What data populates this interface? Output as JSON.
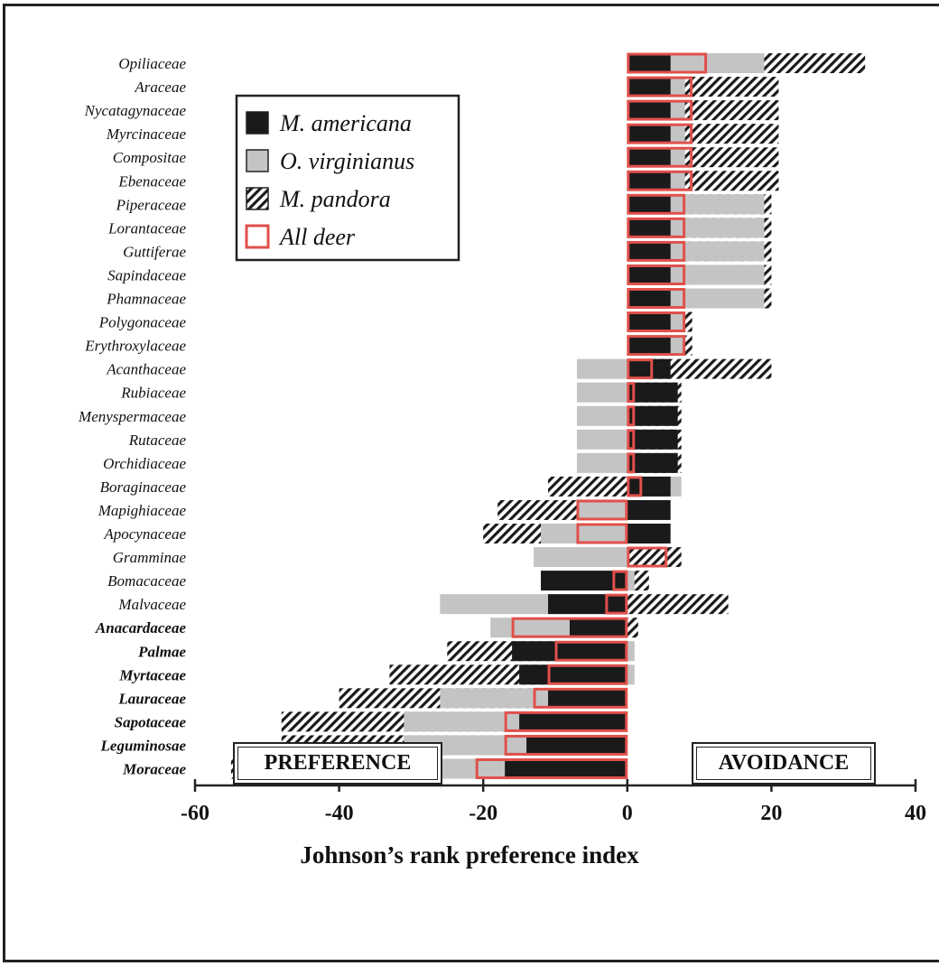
{
  "chart_data": {
    "type": "bar",
    "orientation": "horizontal",
    "xlabel": "Johnson’s rank preference index",
    "xlim": [
      -60,
      40
    ],
    "xticks": [
      -60,
      -40,
      -20,
      0,
      20,
      40
    ],
    "region_labels": {
      "left": "PREFERENCE",
      "right": "AVOIDANCE"
    },
    "legend_position": "top-left",
    "colors": {
      "m_americana": "#1a1a1a",
      "o_virginianus": "#c4c4c4",
      "m_pandora": "#1a1a1a",
      "all_deer": "#e0504a"
    },
    "categories": [
      "Opiliaceae",
      "Araceae",
      "Nycatagynaceae",
      "Myrcinaceae",
      "Compositae",
      "Ebenaceae",
      "Piperaceae",
      "Lorantaceae",
      "Guttiferae",
      "Sapindaceae",
      "Phamnaceae",
      "Polygonaceae",
      "Erythroxylaceae",
      "Acanthaceae",
      "Rubiaceae",
      "Menyspermaceae",
      "Rutaceae",
      "Orchidiaceae",
      "Boraginaceae",
      "Mapighiaceae",
      "Apocynaceae",
      "Gramminae",
      "Bomacaceae",
      "Malvaceae",
      "Anacardaceae",
      "Palmae",
      "Myrtaceae",
      "Lauraceae",
      "Sapotaceae",
      "Leguminosae",
      "Moraceae"
    ],
    "bold_categories": [
      "Anacardaceae",
      "Palmae",
      "Myrtaceae",
      "Lauraceae",
      "Sapotaceae",
      "Leguminosae",
      "Moraceae"
    ],
    "series": [
      {
        "name": "M. americana",
        "values": [
          6,
          6,
          6,
          6,
          6,
          6,
          6,
          6,
          6,
          6,
          6,
          6,
          6,
          6,
          7,
          7,
          7,
          7,
          6,
          6,
          6,
          0,
          -12,
          -11,
          -8,
          -16,
          -15,
          -11,
          -15,
          -14,
          -17
        ]
      },
      {
        "name": "O. virginianus",
        "values": [
          19,
          8,
          8,
          8,
          8,
          8,
          19,
          19,
          19,
          19,
          19,
          8,
          8,
          -7,
          -7,
          -7,
          -7,
          -7,
          7.5,
          -7,
          -12,
          -13,
          1,
          -26,
          -19,
          1,
          1,
          -26,
          -31,
          -31,
          -35
        ]
      },
      {
        "name": "M. pandora",
        "values": [
          33,
          21,
          21,
          21,
          21,
          21,
          20,
          20,
          20,
          20,
          20,
          9,
          9,
          20,
          7.5,
          7.5,
          7.5,
          7.5,
          -11,
          -18,
          -20,
          7.5,
          3,
          14,
          1.5,
          -25,
          -33,
          -40,
          -48,
          -48,
          -55
        ]
      },
      {
        "name": "All deer",
        "values": [
          11,
          9,
          9,
          9,
          9,
          9,
          8,
          8,
          8,
          8,
          8,
          8,
          8,
          3.5,
          1,
          1,
          1,
          1,
          2,
          -7,
          -7,
          5.5,
          -2,
          -3,
          -16,
          -10,
          -11,
          -13,
          -17,
          -17,
          -21
        ]
      }
    ]
  }
}
